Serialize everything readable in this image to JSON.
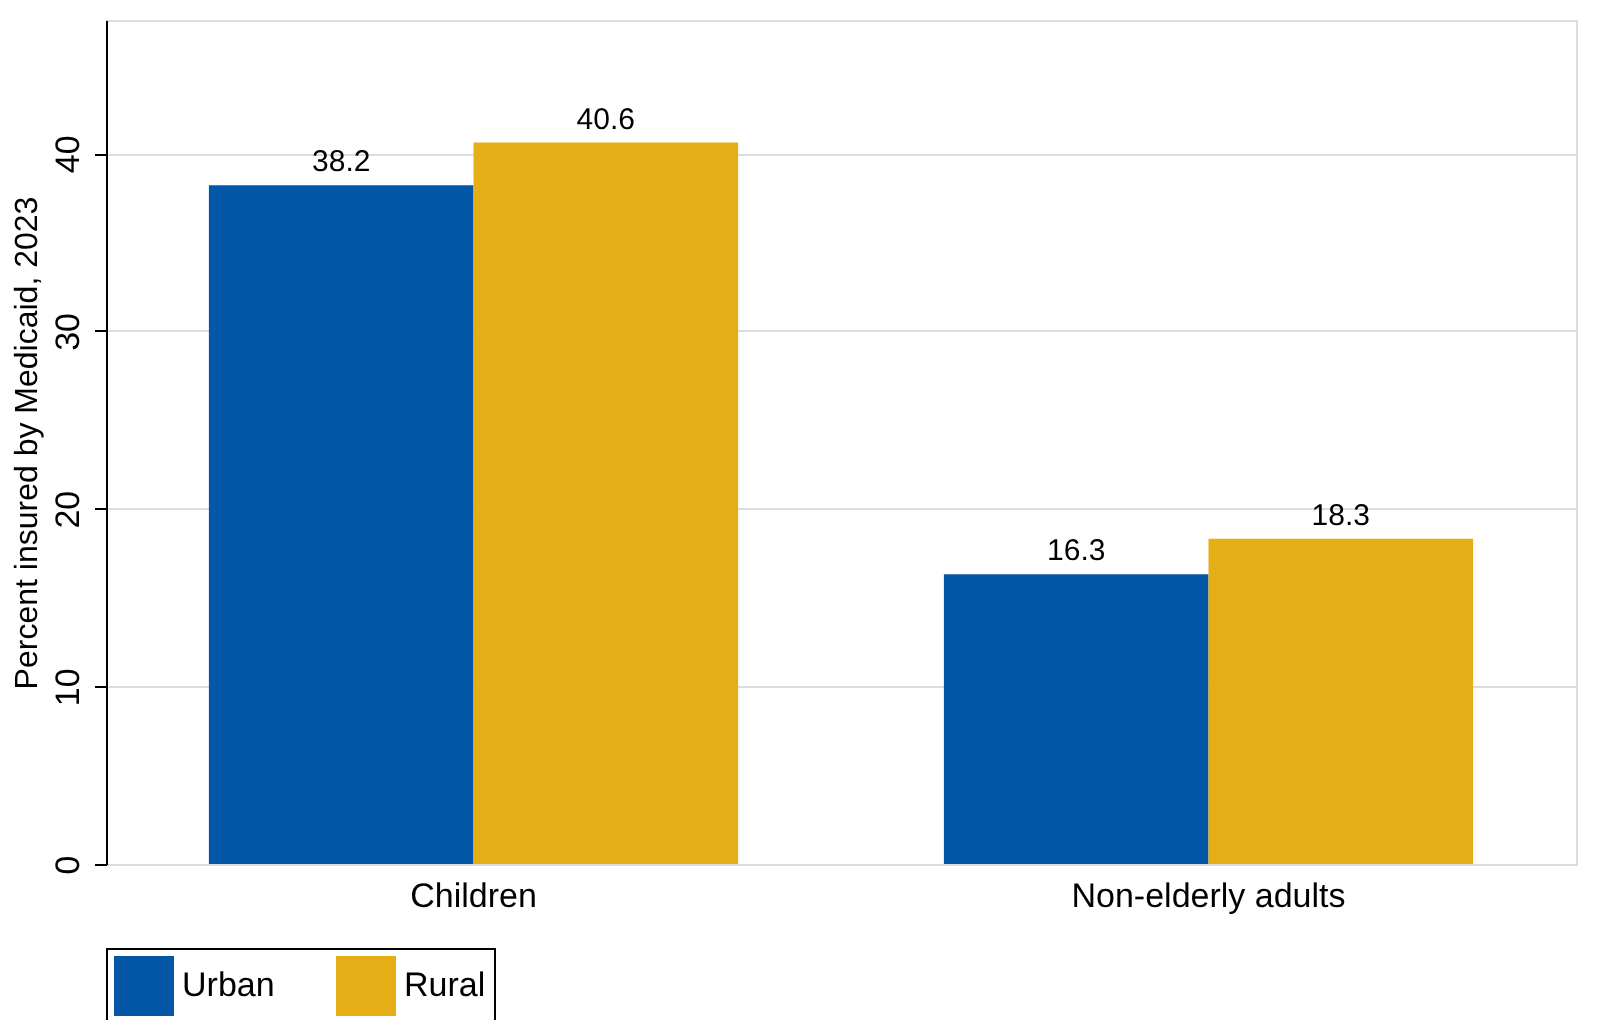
{
  "chart_data": {
    "type": "bar",
    "ylabel": "Percent insured by Medicaid, 2023",
    "categories": [
      "Children",
      "Non-elderly adults"
    ],
    "series": [
      {
        "name": "Urban",
        "color": "#0457a6",
        "values": [
          38.2,
          16.3
        ]
      },
      {
        "name": "Rural",
        "color": "#e5ae17",
        "values": [
          40.6,
          18.3
        ]
      }
    ],
    "ylim": [
      0,
      47.5
    ],
    "yticks": [
      0,
      10,
      20,
      30,
      40
    ],
    "grid": "y",
    "legend": "bottom",
    "data_labels": true
  }
}
